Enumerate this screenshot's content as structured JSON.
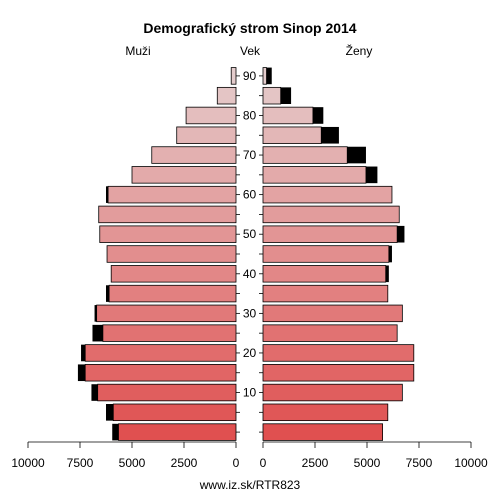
{
  "chart_data": {
    "type": "bar",
    "title": "Demografický strom Sinop 2014",
    "labels": {
      "left": "Muži",
      "center": "Vek",
      "right": "Ženy"
    },
    "footer": "www.iz.sk/RTR823",
    "age_ticks": [
      "10",
      "20",
      "30",
      "40",
      "50",
      "60",
      "70",
      "80",
      "90"
    ],
    "x_ticks_left": [
      "10000",
      "7500",
      "5000",
      "2500",
      "0"
    ],
    "x_ticks_right": [
      "0",
      "2500",
      "5000",
      "7500",
      "10000"
    ],
    "xlim": [
      0,
      10000
    ],
    "age_groups": [
      "0-4",
      "5-9",
      "10-14",
      "15-19",
      "20-24",
      "25-29",
      "30-34",
      "35-39",
      "40-44",
      "45-49",
      "50-54",
      "55-59",
      "60-64",
      "65-69",
      "70-74",
      "75-79",
      "80-84",
      "85-89",
      "90+"
    ],
    "series": [
      {
        "name": "Muži",
        "total": [
          5950,
          6250,
          6950,
          7600,
          7450,
          6900,
          6800,
          6250,
          6000,
          6200,
          6550,
          6600,
          6250,
          5000,
          4050,
          2850,
          2400,
          900,
          230
        ],
        "excess": [
          300,
          350,
          300,
          350,
          200,
          500,
          100,
          150,
          0,
          0,
          0,
          0,
          100,
          0,
          0,
          0,
          0,
          0,
          0
        ]
      },
      {
        "name": "Ženy",
        "total": [
          5750,
          6000,
          6700,
          7250,
          7250,
          6450,
          6700,
          6000,
          6050,
          6200,
          6800,
          6550,
          6200,
          5500,
          4950,
          3650,
          2900,
          1350,
          420
        ],
        "excess": [
          0,
          0,
          0,
          0,
          0,
          0,
          0,
          0,
          150,
          150,
          350,
          0,
          0,
          550,
          900,
          850,
          500,
          500,
          250
        ]
      }
    ]
  }
}
